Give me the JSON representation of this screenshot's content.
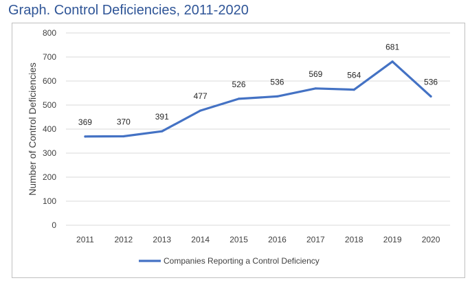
{
  "title": "Graph. Control Deficiencies, 2011-2020",
  "chart_data": {
    "type": "line",
    "title": "Graph. Control Deficiencies, 2011-2020",
    "xlabel": "",
    "ylabel": "Number of Control Deficiencies",
    "categories": [
      "2011",
      "2012",
      "2013",
      "2014",
      "2015",
      "2016",
      "2017",
      "2018",
      "2019",
      "2020"
    ],
    "series": [
      {
        "name": "Companies Reporting a Control Deficiency",
        "values": [
          369,
          370,
          391,
          477,
          526,
          536,
          569,
          564,
          681,
          536
        ],
        "color": "#4472c4"
      }
    ],
    "ylim": [
      0,
      800
    ],
    "yticks": [
      0,
      100,
      200,
      300,
      400,
      500,
      600,
      700,
      800
    ],
    "grid": true,
    "legend": "bottom",
    "data_labels": true
  }
}
